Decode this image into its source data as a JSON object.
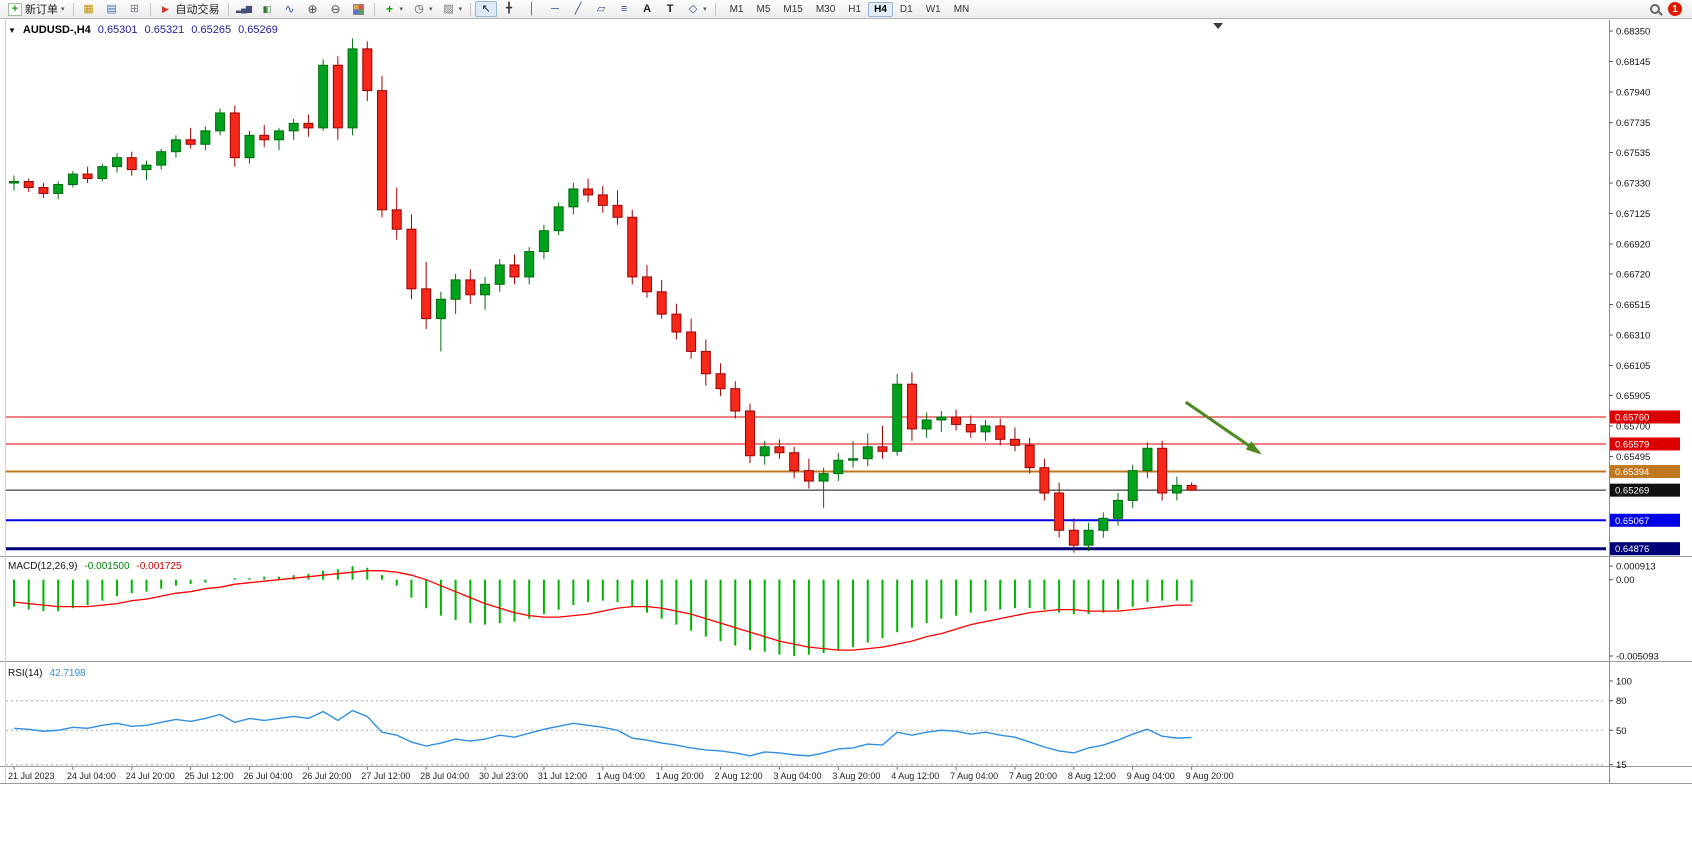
{
  "toolbar": {
    "new_order": "新订单",
    "autotrading": "自动交易",
    "timeframes": [
      "M1",
      "M5",
      "M15",
      "M30",
      "H1",
      "H4",
      "D1",
      "W1",
      "MN"
    ],
    "active_timeframe": "H4",
    "notification_count": "1"
  },
  "icons": {
    "dropdown": "▾",
    "symbol_dropdown": "▼",
    "new_order": "+",
    "market_watch": "▦",
    "data_window": "▤",
    "navigator": "⊞",
    "autotrading": "▶",
    "bar_chart": "▂▄▆",
    "candle_chart": "▮▯",
    "line_chart": "∿",
    "zoom_in": "⊕",
    "zoom_out": "⊖",
    "indicators": "+",
    "periods": "◷",
    "template": "▨",
    "cursor": "↖",
    "crosshair": "╋",
    "vertical_line": "│",
    "horizontal_line": "─",
    "trendline": "╱",
    "channel": "▱",
    "fibonacci": "≡",
    "text": "A",
    "label": "T",
    "shapes": "◇"
  },
  "symbol_bar": {
    "symbol": "AUDUSD-,H4",
    "open": "0.65301",
    "high": "0.65321",
    "low": "0.65265",
    "close": "0.65269"
  },
  "macd_label": {
    "name": "MACD(12,26,9)",
    "main": "-0.001500",
    "signal": "-0.001725"
  },
  "rsi_label": {
    "name": "RSI(14)",
    "value": "42.7198"
  },
  "chart_data": [
    {
      "type": "candlestick",
      "title": "AUDUSD-,H4",
      "x_label_step": 4,
      "x_labels": [
        "21 Jul 2023",
        "24 Jul 04:00",
        "24 Jul 20:00",
        "25 Jul 12:00",
        "26 Jul 04:00",
        "26 Jul 20:00",
        "27 Jul 12:00",
        "28 Jul 04:00",
        "30 Jul 23:00",
        "31 Jul 12:00",
        "1 Aug 04:00",
        "1 Aug 20:00",
        "2 Aug 12:00",
        "3 Aug 04:00",
        "3 Aug 20:00",
        "4 Aug 12:00",
        "7 Aug 04:00",
        "7 Aug 20:00",
        "8 Aug 12:00",
        "9 Aug 04:00",
        "9 Aug 20:00"
      ],
      "y_ticks": [
        "0.68350",
        "0.68145",
        "0.67940",
        "0.67735",
        "0.67535",
        "0.67330",
        "0.67125",
        "0.66920",
        "0.66720",
        "0.66515",
        "0.66310",
        "0.66105",
        "0.65905",
        "0.65700",
        "0.65495"
      ],
      "ylim": [
        0.6483,
        0.68425
      ],
      "up_color": "#00a11c",
      "up_border": "#006d0e",
      "down_color": "#f52819",
      "down_border": "#9e0000",
      "candles": [
        [
          0.6733,
          0.6738,
          0.6728,
          0.6734
        ],
        [
          0.6734,
          0.6736,
          0.6727,
          0.673
        ],
        [
          0.673,
          0.6733,
          0.6723,
          0.6726
        ],
        [
          0.6726,
          0.6734,
          0.6722,
          0.6732
        ],
        [
          0.6732,
          0.6741,
          0.673,
          0.6739
        ],
        [
          0.6739,
          0.6744,
          0.6733,
          0.6736
        ],
        [
          0.6736,
          0.6746,
          0.6734,
          0.6744
        ],
        [
          0.6744,
          0.6753,
          0.674,
          0.675
        ],
        [
          0.675,
          0.6754,
          0.6738,
          0.6742
        ],
        [
          0.6742,
          0.6748,
          0.6735,
          0.6745
        ],
        [
          0.6745,
          0.6756,
          0.6742,
          0.6754
        ],
        [
          0.6754,
          0.6765,
          0.675,
          0.6762
        ],
        [
          0.6762,
          0.677,
          0.6756,
          0.6759
        ],
        [
          0.6759,
          0.6771,
          0.6755,
          0.6768
        ],
        [
          0.6768,
          0.6783,
          0.6765,
          0.678
        ],
        [
          0.678,
          0.6785,
          0.6744,
          0.675
        ],
        [
          0.675,
          0.6768,
          0.6746,
          0.6765
        ],
        [
          0.6765,
          0.6772,
          0.6757,
          0.6762
        ],
        [
          0.6762,
          0.677,
          0.6755,
          0.6768
        ],
        [
          0.6768,
          0.6776,
          0.6762,
          0.6773
        ],
        [
          0.6773,
          0.6779,
          0.6764,
          0.677
        ],
        [
          0.677,
          0.6816,
          0.6768,
          0.6812
        ],
        [
          0.6812,
          0.6818,
          0.6762,
          0.677
        ],
        [
          0.677,
          0.683,
          0.6765,
          0.6823
        ],
        [
          0.6823,
          0.6828,
          0.6788,
          0.6795
        ],
        [
          0.6795,
          0.6805,
          0.671,
          0.6715
        ],
        [
          0.6715,
          0.673,
          0.6695,
          0.6702
        ],
        [
          0.6702,
          0.6712,
          0.6655,
          0.6662
        ],
        [
          0.6662,
          0.668,
          0.6635,
          0.6642
        ],
        [
          0.6642,
          0.666,
          0.662,
          0.6655
        ],
        [
          0.6655,
          0.6672,
          0.6645,
          0.6668
        ],
        [
          0.6668,
          0.6675,
          0.6652,
          0.6658
        ],
        [
          0.6658,
          0.667,
          0.6648,
          0.6665
        ],
        [
          0.6665,
          0.6682,
          0.666,
          0.6678
        ],
        [
          0.6678,
          0.6685,
          0.6665,
          0.667
        ],
        [
          0.667,
          0.669,
          0.6665,
          0.6687
        ],
        [
          0.6687,
          0.6705,
          0.6682,
          0.6701
        ],
        [
          0.6701,
          0.672,
          0.6698,
          0.6717
        ],
        [
          0.6717,
          0.6733,
          0.6712,
          0.6729
        ],
        [
          0.6729,
          0.6736,
          0.672,
          0.6725
        ],
        [
          0.6725,
          0.6731,
          0.6713,
          0.6718
        ],
        [
          0.6718,
          0.6728,
          0.6705,
          0.671
        ],
        [
          0.671,
          0.6715,
          0.6665,
          0.667
        ],
        [
          0.667,
          0.6678,
          0.6656,
          0.666
        ],
        [
          0.666,
          0.6668,
          0.6642,
          0.6645
        ],
        [
          0.6645,
          0.6652,
          0.6628,
          0.6633
        ],
        [
          0.6633,
          0.6642,
          0.6615,
          0.662
        ],
        [
          0.662,
          0.6628,
          0.6597,
          0.6605
        ],
        [
          0.6605,
          0.6612,
          0.659,
          0.6595
        ],
        [
          0.6595,
          0.66,
          0.6575,
          0.658
        ],
        [
          0.658,
          0.6585,
          0.6545,
          0.655
        ],
        [
          0.655,
          0.656,
          0.6544,
          0.6556
        ],
        [
          0.6556,
          0.6561,
          0.6548,
          0.6552
        ],
        [
          0.6552,
          0.6556,
          0.6535,
          0.654
        ],
        [
          0.654,
          0.6548,
          0.6528,
          0.6533
        ],
        [
          0.6533,
          0.6542,
          0.6515,
          0.6538
        ],
        [
          0.6538,
          0.6552,
          0.6533,
          0.6547
        ],
        [
          0.6547,
          0.656,
          0.6542,
          0.6548
        ],
        [
          0.6548,
          0.6565,
          0.6543,
          0.6556
        ],
        [
          0.6556,
          0.657,
          0.6548,
          0.6553
        ],
        [
          0.6553,
          0.6605,
          0.655,
          0.6598
        ],
        [
          0.6598,
          0.6606,
          0.656,
          0.6568
        ],
        [
          0.6568,
          0.6579,
          0.6562,
          0.6574
        ],
        [
          0.6574,
          0.658,
          0.6566,
          0.6576
        ],
        [
          0.6576,
          0.6581,
          0.6567,
          0.6571
        ],
        [
          0.6571,
          0.6577,
          0.6562,
          0.6566
        ],
        [
          0.6566,
          0.6574,
          0.656,
          0.657
        ],
        [
          0.657,
          0.6575,
          0.6557,
          0.6561
        ],
        [
          0.6561,
          0.6569,
          0.6553,
          0.6557
        ],
        [
          0.6557,
          0.6562,
          0.6538,
          0.6542
        ],
        [
          0.6542,
          0.6548,
          0.652,
          0.6525
        ],
        [
          0.6525,
          0.6532,
          0.6495,
          0.65
        ],
        [
          0.65,
          0.6508,
          0.6485,
          0.649
        ],
        [
          0.649,
          0.6505,
          0.6486,
          0.65
        ],
        [
          0.65,
          0.6512,
          0.6495,
          0.6508
        ],
        [
          0.6508,
          0.6525,
          0.6503,
          0.652
        ],
        [
          0.652,
          0.6544,
          0.6515,
          0.654
        ],
        [
          0.654,
          0.6559,
          0.6535,
          0.6555
        ],
        [
          0.6555,
          0.656,
          0.652,
          0.6525
        ],
        [
          0.6525,
          0.6536,
          0.652,
          0.65301
        ],
        [
          0.65301,
          0.65321,
          0.65265,
          0.65269
        ]
      ],
      "hlines": [
        {
          "price": 0.6576,
          "label": "0.65760",
          "color": "#dd0000",
          "width": 1
        },
        {
          "price": 0.65579,
          "label": "0.65579",
          "color": "#dd0000",
          "width": 1
        },
        {
          "price": 0.65394,
          "label": "0.65394",
          "color": "#c07820",
          "width": 2
        },
        {
          "price": 0.65269,
          "label": "0.65269",
          "color": "#111111",
          "width": 1
        },
        {
          "price": 0.65067,
          "label": "0.65067",
          "color": "#0000e8",
          "width": 2
        },
        {
          "price": 0.64876,
          "label": "0.64876",
          "color": "#000078",
          "width": 3
        }
      ],
      "arrow": {
        "bar1": 79.6,
        "price1": 0.6586,
        "bar2": 84.6,
        "price2": 0.6552,
        "color": "#4d8a1f"
      },
      "shift_marker_bar": 81.8
    },
    {
      "type": "bar",
      "name": "MACD(12,26,9)",
      "current_main": -0.0015,
      "current_signal": -0.001725,
      "bar_color": "#00b400",
      "signal_color": "#ff0000",
      "y_ticks": [
        {
          "label": "0.000913",
          "value": 0.000913
        },
        {
          "label": "0.00",
          "value": 0
        },
        {
          "label": "-0.005093",
          "value": -0.005093
        }
      ],
      "ylim": [
        -0.005093,
        0.000913
      ],
      "values": [
        -0.0018,
        -0.002,
        -0.0021,
        -0.0021,
        -0.0019,
        -0.0017,
        -0.0014,
        -0.0011,
        -0.0009,
        -0.0008,
        -0.0006,
        -0.0004,
        -0.0003,
        -0.0002,
        0.0,
        0.0001,
        0.0001,
        0.0002,
        0.0002,
        0.0003,
        0.0004,
        0.0006,
        0.0007,
        0.0009,
        0.0008,
        0.0003,
        -0.0004,
        -0.0012,
        -0.0019,
        -0.0024,
        -0.0027,
        -0.0029,
        -0.003,
        -0.0029,
        -0.0028,
        -0.0026,
        -0.0023,
        -0.002,
        -0.0017,
        -0.0015,
        -0.0014,
        -0.0015,
        -0.0018,
        -0.0022,
        -0.0026,
        -0.003,
        -0.0034,
        -0.0038,
        -0.0041,
        -0.0044,
        -0.0047,
        -0.0048,
        -0.005,
        -0.0051,
        -0.005,
        -0.0049,
        -0.0047,
        -0.0045,
        -0.0042,
        -0.0039,
        -0.0035,
        -0.0032,
        -0.0029,
        -0.0026,
        -0.0024,
        -0.0022,
        -0.0021,
        -0.002,
        -0.0019,
        -0.0019,
        -0.002,
        -0.0022,
        -0.0023,
        -0.0023,
        -0.0022,
        -0.002,
        -0.0018,
        -0.0015,
        -0.0014,
        -0.0014,
        -0.0015
      ],
      "signal": [
        -0.0015,
        -0.0016,
        -0.0017,
        -0.0018,
        -0.0018,
        -0.0018,
        -0.0017,
        -0.0016,
        -0.0014,
        -0.0013,
        -0.0011,
        -0.0009,
        -0.0008,
        -0.0006,
        -0.0005,
        -0.0003,
        -0.0002,
        -0.0001,
        0.0,
        0.0001,
        0.0002,
        0.0003,
        0.0004,
        0.0005,
        0.0006,
        0.0006,
        0.0005,
        0.0003,
        0.0,
        -0.0004,
        -0.0008,
        -0.0012,
        -0.0016,
        -0.0019,
        -0.0022,
        -0.0024,
        -0.0025,
        -0.0025,
        -0.0024,
        -0.0023,
        -0.0021,
        -0.0019,
        -0.0018,
        -0.0018,
        -0.0019,
        -0.0021,
        -0.0023,
        -0.0026,
        -0.0029,
        -0.0032,
        -0.0035,
        -0.0038,
        -0.0041,
        -0.0043,
        -0.0045,
        -0.0046,
        -0.0047,
        -0.0047,
        -0.0046,
        -0.0045,
        -0.0043,
        -0.0041,
        -0.0038,
        -0.0036,
        -0.0033,
        -0.003,
        -0.0028,
        -0.0026,
        -0.0024,
        -0.0022,
        -0.0021,
        -0.002,
        -0.002,
        -0.0021,
        -0.0021,
        -0.0021,
        -0.002,
        -0.0019,
        -0.0018,
        -0.0017,
        -0.0017
      ]
    },
    {
      "type": "line",
      "name": "RSI(14)",
      "current_value": 42.7198,
      "line_color": "#2f8fe0",
      "levels": [
        80,
        50,
        15
      ],
      "y_ticks": [
        {
          "label": "100",
          "value": 100
        },
        {
          "label": "80",
          "value": 80
        },
        {
          "label": "50",
          "value": 50
        },
        {
          "label": "15",
          "value": 15
        }
      ],
      "ylim": [
        15,
        100
      ],
      "values": [
        52,
        51,
        49,
        50,
        53,
        52,
        55,
        57,
        54,
        55,
        58,
        61,
        59,
        62,
        66,
        58,
        62,
        60,
        62,
        64,
        62,
        69,
        60,
        70,
        64,
        48,
        45,
        38,
        34,
        37,
        41,
        39,
        41,
        45,
        43,
        47,
        51,
        54,
        57,
        55,
        53,
        50,
        42,
        40,
        37,
        35,
        32,
        30,
        29,
        27,
        24,
        28,
        27,
        25,
        24,
        27,
        31,
        32,
        36,
        35,
        48,
        45,
        48,
        50,
        49,
        46,
        48,
        45,
        43,
        38,
        33,
        29,
        27,
        32,
        35,
        40,
        46,
        51,
        44,
        42,
        42.7
      ]
    }
  ]
}
